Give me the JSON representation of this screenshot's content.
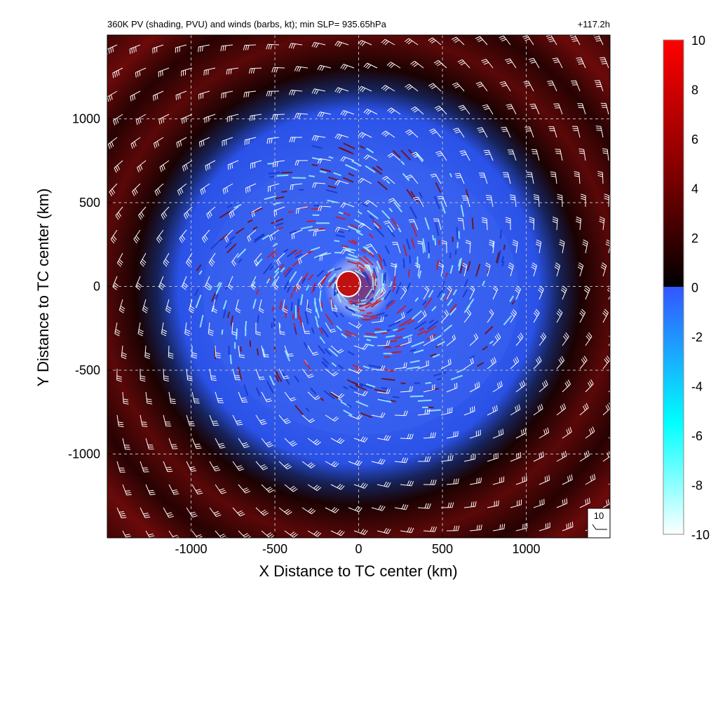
{
  "chart_data": {
    "type": "heatmap",
    "title": "360K PV (shading, PVU) and winds (barbs, kt); min SLP= 935.65hPa",
    "forecast_hour": "+117.2h",
    "xlabel": "X Distance to TC center (km)",
    "ylabel": "Y Distance to TC center (km)",
    "xlim": [
      -1500,
      1500
    ],
    "ylim": [
      -1500,
      1500
    ],
    "x_ticks": [
      -1000,
      -500,
      0,
      500,
      1000
    ],
    "y_ticks": [
      -1000,
      -500,
      0,
      500,
      1000
    ],
    "grid": true,
    "colorbar": {
      "min": -10,
      "max": 10,
      "ticks": [
        10,
        8,
        6,
        4,
        2,
        0,
        -2,
        -4,
        -6,
        -8,
        -10
      ],
      "colors": {
        "high": "#ff0000",
        "mid_high": "#8b0000",
        "zero_upper": "#000000",
        "zero_lower": "#3355ff",
        "mid_low": "#00ffff",
        "low": "#ffffff"
      }
    },
    "reference_barb": {
      "label": "10"
    }
  }
}
